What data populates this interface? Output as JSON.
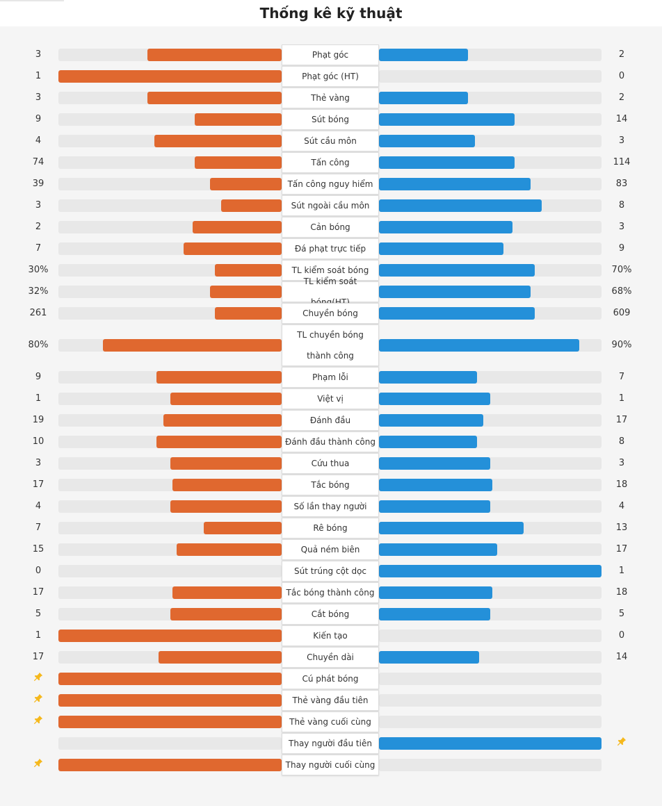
{
  "page": {
    "title": "Thống kê kỹ thuật"
  },
  "colors": {
    "home": "#e0682f",
    "away": "#2490d9",
    "track": "#e8e8e8",
    "pin": "#f5b81c"
  },
  "stats": [
    {
      "label": "Phạt góc",
      "home": "3",
      "away": "2",
      "home_pct": 60,
      "away_pct": 40
    },
    {
      "label": "Phạt góc (HT)",
      "home": "1",
      "away": "0",
      "home_pct": 100,
      "away_pct": 0
    },
    {
      "label": "Thẻ vàng",
      "home": "3",
      "away": "2",
      "home_pct": 60,
      "away_pct": 40
    },
    {
      "label": "Sút bóng",
      "home": "9",
      "away": "14",
      "home_pct": 39,
      "away_pct": 61
    },
    {
      "label": "Sút cầu môn",
      "home": "4",
      "away": "3",
      "home_pct": 57,
      "away_pct": 43
    },
    {
      "label": "Tấn công",
      "home": "74",
      "away": "114",
      "home_pct": 39,
      "away_pct": 61
    },
    {
      "label": "Tấn công nguy hiểm",
      "home": "39",
      "away": "83",
      "home_pct": 32,
      "away_pct": 68
    },
    {
      "label": "Sút ngoài cầu môn",
      "home": "3",
      "away": "8",
      "home_pct": 27,
      "away_pct": 73
    },
    {
      "label": "Cản bóng",
      "home": "2",
      "away": "3",
      "home_pct": 40,
      "away_pct": 60
    },
    {
      "label": "Đá phạt trực tiếp",
      "home": "7",
      "away": "9",
      "home_pct": 44,
      "away_pct": 56
    },
    {
      "label": "TL kiểm soát bóng",
      "home": "30%",
      "away": "70%",
      "home_pct": 30,
      "away_pct": 70
    },
    {
      "label": "TL kiểm soát bóng(HT)",
      "home": "32%",
      "away": "68%",
      "home_pct": 32,
      "away_pct": 68
    },
    {
      "label": "Chuyền bóng",
      "home": "261",
      "away": "609",
      "home_pct": 30,
      "away_pct": 70
    },
    {
      "label": "TL chuyền bóng thành công",
      "home": "80%",
      "away": "90%",
      "home_pct": 80,
      "away_pct": 90,
      "tall": true
    },
    {
      "label": "Phạm lỗi",
      "home": "9",
      "away": "7",
      "home_pct": 56,
      "away_pct": 44
    },
    {
      "label": "Việt vị",
      "home": "1",
      "away": "1",
      "home_pct": 50,
      "away_pct": 50
    },
    {
      "label": "Đánh đầu",
      "home": "19",
      "away": "17",
      "home_pct": 53,
      "away_pct": 47
    },
    {
      "label": "Đánh đầu thành công",
      "home": "10",
      "away": "8",
      "home_pct": 56,
      "away_pct": 44
    },
    {
      "label": "Cứu thua",
      "home": "3",
      "away": "3",
      "home_pct": 50,
      "away_pct": 50
    },
    {
      "label": "Tắc bóng",
      "home": "17",
      "away": "18",
      "home_pct": 49,
      "away_pct": 51
    },
    {
      "label": "Số lần thay người",
      "home": "4",
      "away": "4",
      "home_pct": 50,
      "away_pct": 50
    },
    {
      "label": "Rê bóng",
      "home": "7",
      "away": "13",
      "home_pct": 35,
      "away_pct": 65
    },
    {
      "label": "Quả ném biên",
      "home": "15",
      "away": "17",
      "home_pct": 47,
      "away_pct": 53
    },
    {
      "label": "Sút trúng cột dọc",
      "home": "0",
      "away": "1",
      "home_pct": 0,
      "away_pct": 100
    },
    {
      "label": "Tắc bóng thành công",
      "home": "17",
      "away": "18",
      "home_pct": 49,
      "away_pct": 51
    },
    {
      "label": "Cắt bóng",
      "home": "5",
      "away": "5",
      "home_pct": 50,
      "away_pct": 50
    },
    {
      "label": "Kiến tạo",
      "home": "1",
      "away": "0",
      "home_pct": 100,
      "away_pct": 0
    },
    {
      "label": "Chuyền dài",
      "home": "17",
      "away": "14",
      "home_pct": 55,
      "away_pct": 45
    },
    {
      "label": "Cú phát bóng",
      "home_pin": true,
      "away_pin": false,
      "home_pct": 100,
      "away_pct": 0
    },
    {
      "label": "Thẻ vàng đầu tiên",
      "home_pin": true,
      "away_pin": false,
      "home_pct": 100,
      "away_pct": 0
    },
    {
      "label": "Thẻ vàng cuối cùng",
      "home_pin": true,
      "away_pin": false,
      "home_pct": 100,
      "away_pct": 0
    },
    {
      "label": "Thay người đầu tiên",
      "home_pin": false,
      "away_pin": true,
      "home_pct": 0,
      "away_pct": 100
    },
    {
      "label": "Thay người cuối cùng",
      "home_pin": true,
      "away_pin": false,
      "home_pct": 100,
      "away_pct": 0
    }
  ]
}
